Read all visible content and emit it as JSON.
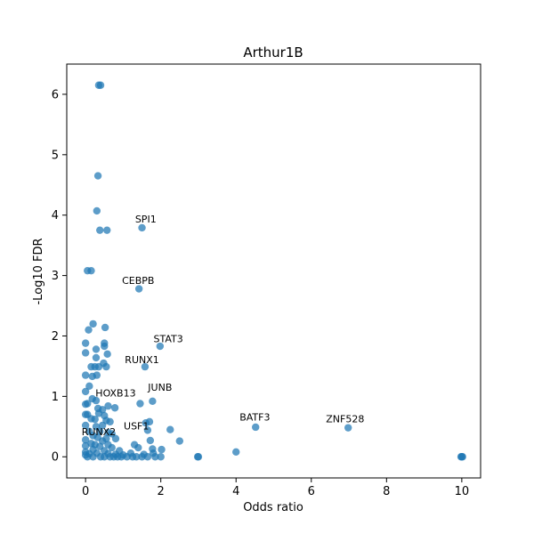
{
  "chart_data": {
    "type": "scatter",
    "title": "Arthur1B",
    "xlabel": "Odds ratio",
    "ylabel": "-Log10 FDR",
    "xlim": [
      -0.5,
      10.5
    ],
    "ylim": [
      -0.35,
      6.5
    ],
    "xticks": [
      0,
      2,
      4,
      6,
      8,
      10
    ],
    "yticks": [
      0,
      1,
      2,
      3,
      4,
      5,
      6
    ],
    "grid": false,
    "point_color": "#1f77b4",
    "points": [
      {
        "x": 0.35,
        "y": 6.15
      },
      {
        "x": 0.4,
        "y": 6.15
      },
      {
        "x": 0.33,
        "y": 4.65
      },
      {
        "x": 0.3,
        "y": 4.07
      },
      {
        "x": 0.38,
        "y": 3.75
      },
      {
        "x": 0.57,
        "y": 3.75
      },
      {
        "x": 1.5,
        "y": 3.79
      },
      {
        "x": 0.05,
        "y": 3.08
      },
      {
        "x": 0.15,
        "y": 3.08
      },
      {
        "x": 1.42,
        "y": 2.78
      },
      {
        "x": 0.2,
        "y": 2.2
      },
      {
        "x": 0.52,
        "y": 2.14
      },
      {
        "x": 0.08,
        "y": 2.1
      },
      {
        "x": 0.0,
        "y": 1.88
      },
      {
        "x": 0.5,
        "y": 1.88
      },
      {
        "x": 0.5,
        "y": 1.83
      },
      {
        "x": 1.98,
        "y": 1.83
      },
      {
        "x": 0.28,
        "y": 1.78
      },
      {
        "x": 0.0,
        "y": 1.72
      },
      {
        "x": 0.58,
        "y": 1.7
      },
      {
        "x": 0.28,
        "y": 1.64
      },
      {
        "x": 0.48,
        "y": 1.55
      },
      {
        "x": 0.15,
        "y": 1.49
      },
      {
        "x": 0.25,
        "y": 1.49
      },
      {
        "x": 0.35,
        "y": 1.49
      },
      {
        "x": 0.55,
        "y": 1.49
      },
      {
        "x": 1.58,
        "y": 1.49
      },
      {
        "x": 0.0,
        "y": 1.35
      },
      {
        "x": 0.18,
        "y": 1.33
      },
      {
        "x": 0.3,
        "y": 1.35
      },
      {
        "x": 0.1,
        "y": 1.17
      },
      {
        "x": 0.0,
        "y": 1.08
      },
      {
        "x": 0.18,
        "y": 0.96
      },
      {
        "x": 0.28,
        "y": 0.93
      },
      {
        "x": 1.78,
        "y": 0.92
      },
      {
        "x": 1.45,
        "y": 0.88
      },
      {
        "x": 0.0,
        "y": 0.87
      },
      {
        "x": 0.05,
        "y": 0.88
      },
      {
        "x": 0.6,
        "y": 0.84
      },
      {
        "x": 0.78,
        "y": 0.81
      },
      {
        "x": 0.33,
        "y": 0.8
      },
      {
        "x": 0.45,
        "y": 0.78
      },
      {
        "x": 0.0,
        "y": 0.7
      },
      {
        "x": 0.05,
        "y": 0.7
      },
      {
        "x": 0.35,
        "y": 0.72
      },
      {
        "x": 0.5,
        "y": 0.68
      },
      {
        "x": 0.15,
        "y": 0.63
      },
      {
        "x": 0.25,
        "y": 0.62
      },
      {
        "x": 0.55,
        "y": 0.6
      },
      {
        "x": 0.65,
        "y": 0.58
      },
      {
        "x": 1.7,
        "y": 0.58
      },
      {
        "x": 1.6,
        "y": 0.56
      },
      {
        "x": 0.0,
        "y": 0.52
      },
      {
        "x": 0.45,
        "y": 0.52
      },
      {
        "x": 0.28,
        "y": 0.5
      },
      {
        "x": 4.52,
        "y": 0.49
      },
      {
        "x": 6.98,
        "y": 0.48
      },
      {
        "x": 2.25,
        "y": 0.45
      },
      {
        "x": 1.65,
        "y": 0.44
      },
      {
        "x": 0.1,
        "y": 0.42
      },
      {
        "x": 0.38,
        "y": 0.42
      },
      {
        "x": 0.6,
        "y": 0.4
      },
      {
        "x": 0.7,
        "y": 0.38
      },
      {
        "x": 0.2,
        "y": 0.35
      },
      {
        "x": 0.32,
        "y": 0.32
      },
      {
        "x": 0.55,
        "y": 0.3
      },
      {
        "x": 0.8,
        "y": 0.3
      },
      {
        "x": 0.0,
        "y": 0.28
      },
      {
        "x": 0.45,
        "y": 0.26
      },
      {
        "x": 1.72,
        "y": 0.27
      },
      {
        "x": 2.5,
        "y": 0.26
      },
      {
        "x": 0.15,
        "y": 0.22
      },
      {
        "x": 0.25,
        "y": 0.2
      },
      {
        "x": 0.6,
        "y": 0.2
      },
      {
        "x": 1.3,
        "y": 0.2
      },
      {
        "x": 0.0,
        "y": 0.18
      },
      {
        "x": 0.38,
        "y": 0.17
      },
      {
        "x": 0.7,
        "y": 0.15
      },
      {
        "x": 1.4,
        "y": 0.15
      },
      {
        "x": 1.78,
        "y": 0.13
      },
      {
        "x": 2.02,
        "y": 0.12
      },
      {
        "x": 0.2,
        "y": 0.12
      },
      {
        "x": 0.5,
        "y": 0.1
      },
      {
        "x": 0.9,
        "y": 0.1
      },
      {
        "x": 4.0,
        "y": 0.08
      },
      {
        "x": 1.8,
        "y": 0.06
      },
      {
        "x": 1.2,
        "y": 0.06
      },
      {
        "x": 1.55,
        "y": 0.04
      },
      {
        "x": 0.0,
        "y": 0.08
      },
      {
        "x": 0.1,
        "y": 0.05
      },
      {
        "x": 0.3,
        "y": 0.06
      },
      {
        "x": 0.6,
        "y": 0.05
      },
      {
        "x": 0.8,
        "y": 0.04
      },
      {
        "x": 1.0,
        "y": 0.03
      },
      {
        "x": 0.0,
        "y": 0.03
      },
      {
        "x": 0.05,
        "y": 0.0
      },
      {
        "x": 0.2,
        "y": 0.0
      },
      {
        "x": 0.4,
        "y": 0.0
      },
      {
        "x": 0.5,
        "y": 0.0
      },
      {
        "x": 0.65,
        "y": 0.0
      },
      {
        "x": 0.75,
        "y": 0.0
      },
      {
        "x": 0.85,
        "y": 0.0
      },
      {
        "x": 0.95,
        "y": 0.0
      },
      {
        "x": 1.1,
        "y": 0.0
      },
      {
        "x": 1.25,
        "y": 0.0
      },
      {
        "x": 1.35,
        "y": 0.0
      },
      {
        "x": 1.5,
        "y": 0.0
      },
      {
        "x": 1.65,
        "y": 0.0
      },
      {
        "x": 1.85,
        "y": 0.0
      },
      {
        "x": 2.0,
        "y": 0.0
      },
      {
        "x": 2.98,
        "y": 0.0
      },
      {
        "x": 3.0,
        "y": 0.0
      },
      {
        "x": 9.98,
        "y": 0.0
      },
      {
        "x": 10.0,
        "y": 0.0
      },
      {
        "x": 10.02,
        "y": 0.0
      }
    ],
    "annotations": [
      {
        "text": "SPI1",
        "x": 1.6,
        "y": 3.88,
        "color": "#000000"
      },
      {
        "text": "CEBPB",
        "x": 1.4,
        "y": 2.86,
        "color": "#000000"
      },
      {
        "text": "STAT3",
        "x": 2.2,
        "y": 1.9,
        "color": "#000000"
      },
      {
        "text": "RUNX1",
        "x": 1.5,
        "y": 1.55,
        "color": "#000000"
      },
      {
        "text": "JUNB",
        "x": 1.98,
        "y": 1.09,
        "color": "#000000"
      },
      {
        "text": "HOXB13",
        "x": 0.8,
        "y": 1.0,
        "color": "#000000"
      },
      {
        "text": "BATF3",
        "x": 4.5,
        "y": 0.6,
        "color": "#000000"
      },
      {
        "text": "ZNF528",
        "x": 6.9,
        "y": 0.57,
        "color": "#000000"
      },
      {
        "text": "USF1",
        "x": 1.35,
        "y": 0.45,
        "color": "#d62728"
      },
      {
        "text": "RUNX2",
        "x": 0.35,
        "y": 0.36,
        "color": "#000000"
      }
    ]
  }
}
